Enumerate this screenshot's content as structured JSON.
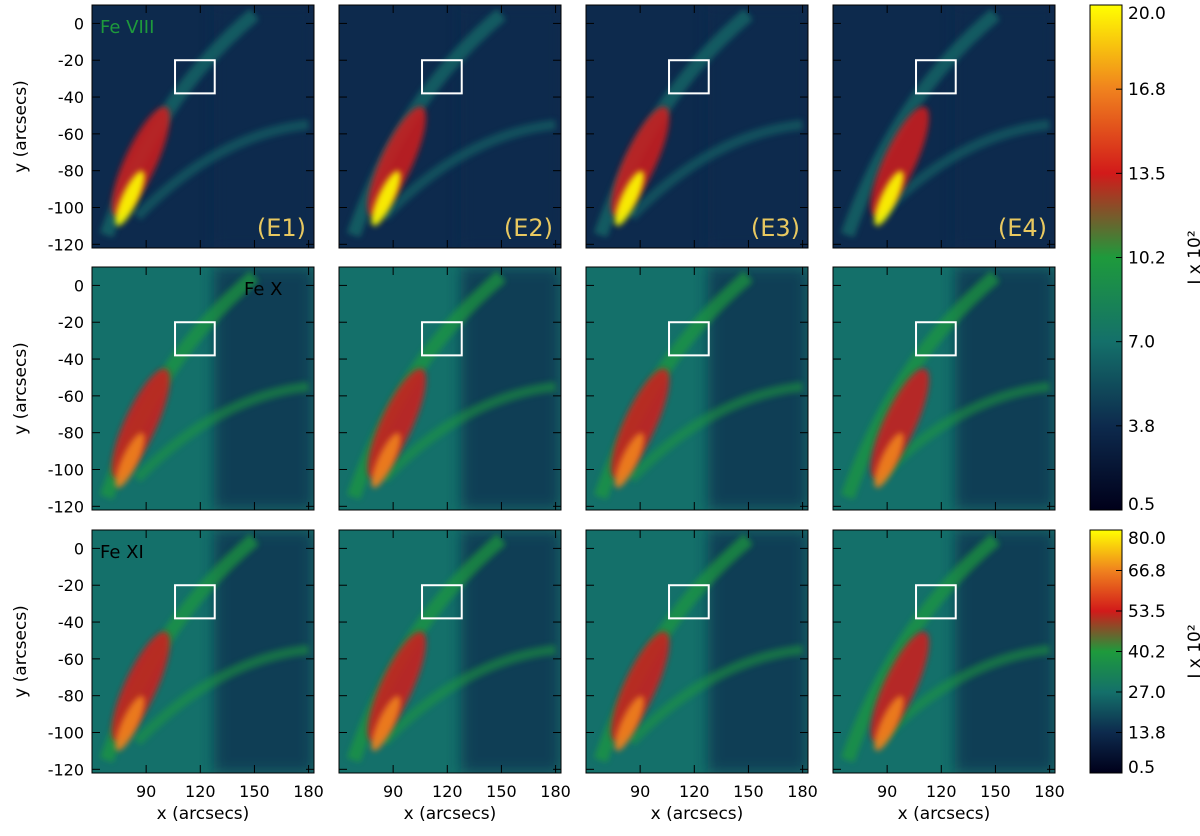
{
  "chart_data": {
    "type": "heatmap",
    "x_axis": {
      "label": "x (arcsecs)",
      "range": [
        60,
        183
      ],
      "ticks": [
        90,
        120,
        150,
        180
      ]
    },
    "y_axis": {
      "label": "y (arcsecs)",
      "range": [
        -122,
        10
      ],
      "ticks": [
        0,
        -20,
        -40,
        -60,
        -80,
        -100,
        -120
      ]
    },
    "row_lines": [
      "Fe VIII",
      "Fe X",
      "Fe XI"
    ],
    "column_labels": [
      "(E1)",
      "(E2)",
      "(E3)",
      "(E4)"
    ],
    "box_region": {
      "x": [
        106,
        128
      ],
      "y": [
        -38,
        -20
      ]
    },
    "colorbars": [
      {
        "rows": [
          "Fe VIII",
          "Fe X"
        ],
        "label": "I x 10²",
        "ticks": [
          "0.5",
          "3.8",
          "7.0",
          "10.2",
          "13.5",
          "16.8",
          "20.0"
        ],
        "min": 0.5,
        "max": 20.0
      },
      {
        "rows": [
          "Fe XI"
        ],
        "label": "I x 10²",
        "ticks": [
          "0.5",
          "13.8",
          "27.0",
          "40.2",
          "53.5",
          "66.8",
          "80.0"
        ],
        "min": 0.5,
        "max": 80.0
      }
    ],
    "colormap": [
      "#00001a",
      "#0d2a4d",
      "#14706a",
      "#1e9a3c",
      "#d21a1a",
      "#f0821e",
      "#ffff00"
    ],
    "label_color": "#e8c860"
  }
}
